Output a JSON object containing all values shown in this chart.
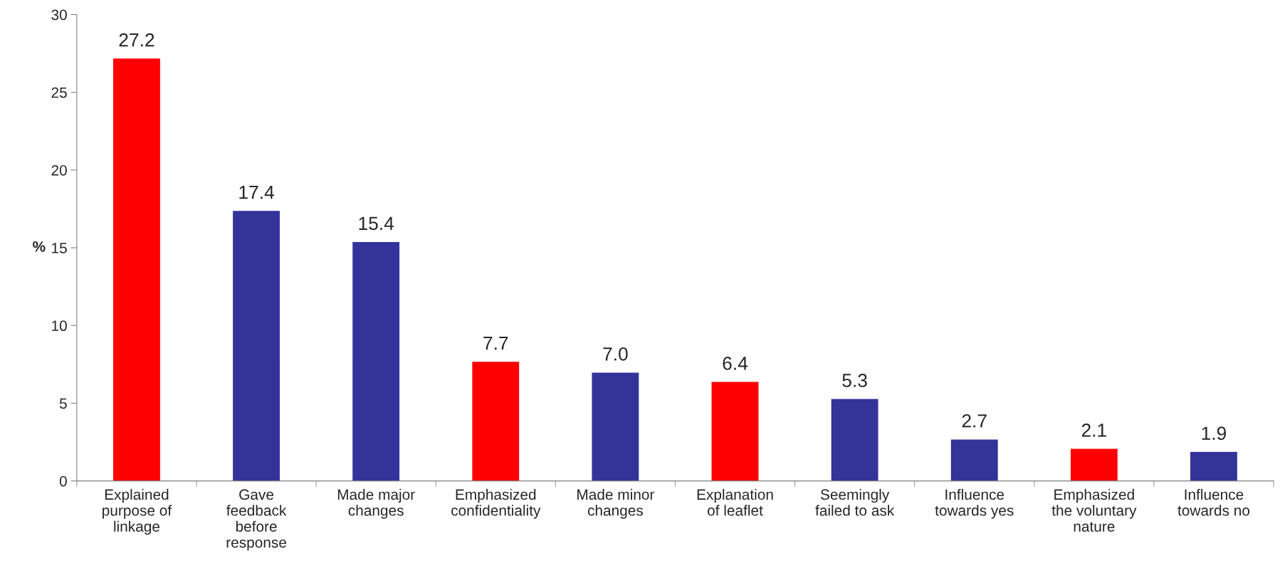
{
  "chart_data": {
    "type": "bar",
    "ylabel": "%",
    "categories": [
      "Explained\npurpose of\nlinkage",
      "Gave\nfeedback\nbefore\nresponse",
      "Made major\nchanges",
      "Emphasized\nconfidentiality",
      "Made minor\nchanges",
      "Explanation\nof leaflet",
      "Seemingly\nfailed to ask",
      "Influence\ntowards yes",
      "Emphasized\nthe voluntary\nnature",
      "Influence\ntowards no"
    ],
    "values": [
      27.2,
      17.4,
      15.4,
      7.7,
      7.0,
      6.4,
      5.3,
      2.7,
      2.1,
      1.9
    ],
    "value_labels": [
      "27.2",
      "17.4",
      "15.4",
      "7.7",
      "7.0",
      "6.4",
      "5.3",
      "2.7",
      "2.1",
      "1.9"
    ],
    "colors": [
      "#ff0000",
      "#333399",
      "#333399",
      "#ff0000",
      "#333399",
      "#ff0000",
      "#333399",
      "#333399",
      "#ff0000",
      "#333399"
    ],
    "ylim": [
      0,
      30
    ],
    "yticks": [
      0,
      5,
      10,
      15,
      20,
      25,
      30
    ],
    "grid": false,
    "legend": false
  }
}
